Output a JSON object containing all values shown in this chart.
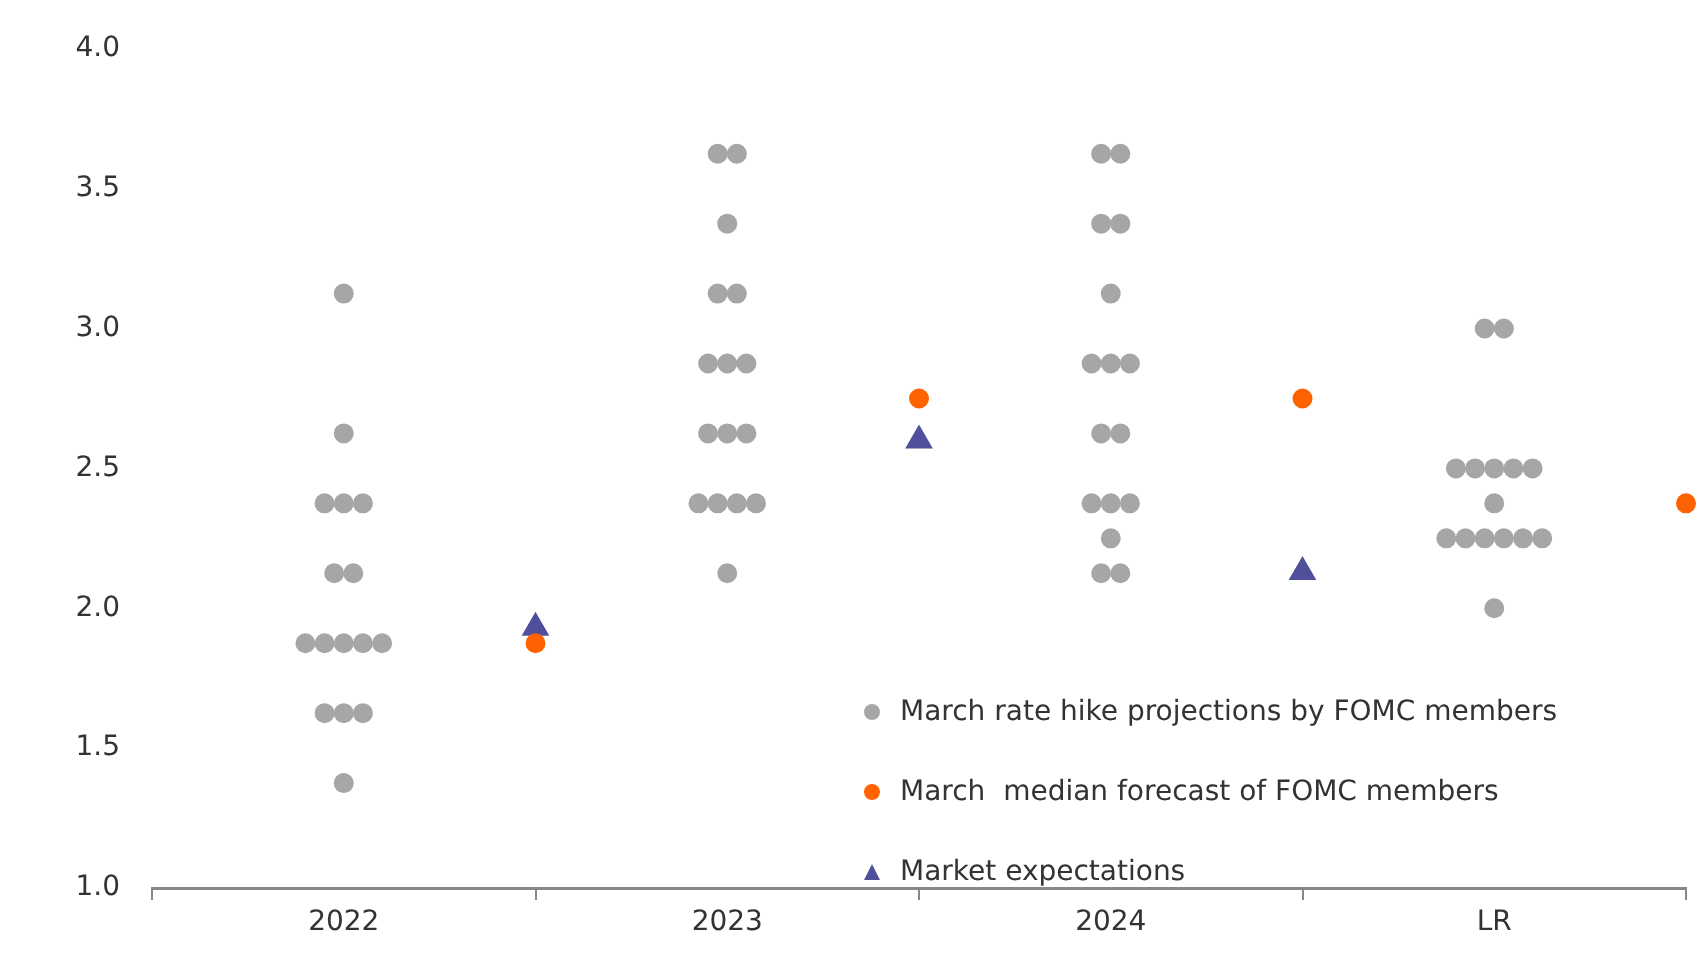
{
  "chart_data": {
    "type": "scatter",
    "categories": [
      "2022",
      null,
      "2023",
      null,
      "2024",
      null,
      "LR",
      null
    ],
    "ylim": [
      1,
      4
    ],
    "yticks": [
      {
        "value": 1,
        "label": "1.0"
      },
      {
        "value": 1.5,
        "label": "1.5"
      },
      {
        "value": 2,
        "label": "2.0"
      },
      {
        "value": 2.5,
        "label": "2.5"
      },
      {
        "value": 3,
        "label": "3.0"
      },
      {
        "value": 3.5,
        "label": "3.5"
      },
      {
        "value": 4,
        "label": "4.0"
      }
    ],
    "grid": false,
    "legend": "bottom right",
    "marker": "circle",
    "series": [
      {
        "name": "March rate hike projections by FOMC members",
        "color": "#a6a6a6",
        "values": [
          3.125,
          null,
          3.625,
          null,
          3.625,
          null,
          3,
          null
        ]
      },
      {
        "color": "#a6a6a6",
        "values": [
          2.625,
          null,
          3.625,
          null,
          3.625,
          null,
          3,
          null
        ]
      },
      {
        "color": "#a6a6a6",
        "values": [
          2.375,
          null,
          3.375,
          null,
          3.375,
          null,
          2.5,
          null
        ]
      },
      {
        "color": "#a6a6a6",
        "values": [
          2.375,
          null,
          3.125,
          null,
          3.375,
          null,
          2.5,
          null
        ]
      },
      {
        "color": "#a6a6a6",
        "values": [
          2.375,
          null,
          3.125,
          null,
          3.125,
          null,
          2.5,
          null
        ]
      },
      {
        "color": "#a6a6a6",
        "values": [
          2.125,
          null,
          2.875,
          null,
          2.875,
          null,
          2.5,
          null
        ]
      },
      {
        "color": "#a6a6a6",
        "values": [
          2.125,
          null,
          2.875,
          null,
          2.875,
          null,
          2.5,
          null
        ]
      },
      {
        "color": "#a6a6a6",
        "values": [
          1.875,
          null,
          2.875,
          null,
          2.875,
          null,
          2.375,
          null
        ]
      },
      {
        "color": "#a6a6a6",
        "values": [
          1.875,
          null,
          2.625,
          null,
          2.625,
          null,
          2.25,
          null
        ]
      },
      {
        "color": "#a6a6a6",
        "values": [
          1.875,
          null,
          2.625,
          null,
          2.625,
          null,
          2.25,
          null
        ]
      },
      {
        "color": "#a6a6a6",
        "values": [
          1.875,
          null,
          2.625,
          null,
          2.375,
          null,
          2.25,
          null
        ]
      },
      {
        "color": "#a6a6a6",
        "values": [
          1.875,
          null,
          2.375,
          null,
          2.375,
          null,
          2.25,
          null
        ]
      },
      {
        "color": "#a6a6a6",
        "values": [
          1.625,
          null,
          2.375,
          null,
          2.375,
          null,
          2.25,
          null
        ]
      },
      {
        "color": "#a6a6a6",
        "values": [
          1.625,
          null,
          2.375,
          null,
          2.25,
          null,
          2.25,
          null
        ]
      },
      {
        "color": "#a6a6a6",
        "values": [
          1.625,
          null,
          2.375,
          null,
          2.125,
          null,
          2.0,
          null
        ]
      },
      {
        "color": "#a6a6a6",
        "values": [
          1.375,
          null,
          2.125,
          null,
          2.125,
          null,
          null,
          null
        ]
      },
      {
        "name": "March  median forecast of FOMC members",
        "color": "#ff6200",
        "values": [
          null,
          1.875,
          null,
          2.75,
          null,
          2.75,
          null,
          2.375
        ]
      },
      {
        "name": "Market expectations",
        "color": "#4f4f9c",
        "marker": "triangle",
        "values": [
          null,
          1.93,
          null,
          2.6,
          null,
          2.13,
          null,
          null
        ]
      }
    ]
  }
}
